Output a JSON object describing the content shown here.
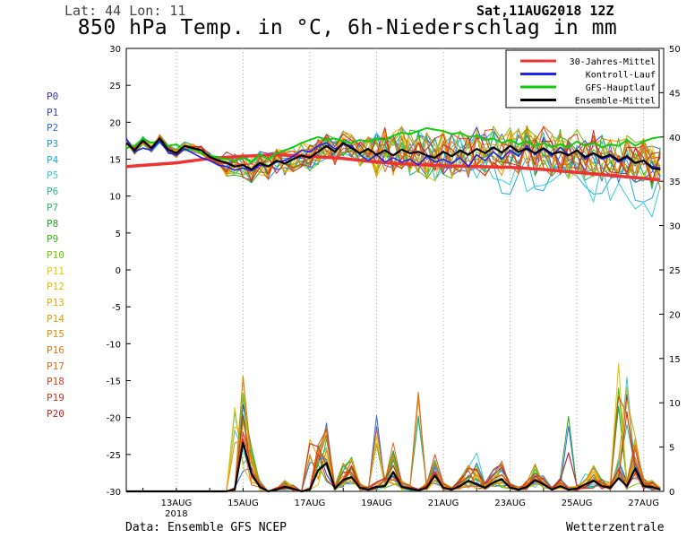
{
  "header": {
    "location": "Lat: 44 Lon: 11",
    "run": "Sat,11AUG2018 12Z",
    "title": "850 hPa Temp. in °C, 6h-Niederschlag in mm"
  },
  "footer": {
    "source": "Data: Ensemble GFS NCEP",
    "brand": "Wetterzentrale"
  },
  "members": [
    {
      "label": "P0",
      "color": "#3333cc"
    },
    {
      "label": "P1",
      "color": "#3344dd"
    },
    {
      "label": "P2",
      "color": "#3366ee"
    },
    {
      "label": "P3",
      "color": "#2299dd"
    },
    {
      "label": "P4",
      "color": "#22aadd"
    },
    {
      "label": "P5",
      "color": "#33ccdd"
    },
    {
      "label": "P6",
      "color": "#22bb88"
    },
    {
      "label": "P7",
      "color": "#22bb66"
    },
    {
      "label": "P8",
      "color": "#22aa22"
    },
    {
      "label": "P9",
      "color": "#33bb11"
    },
    {
      "label": "P10",
      "color": "#66cc00"
    },
    {
      "label": "P11",
      "color": "#ddcc00"
    },
    {
      "label": "P12",
      "color": "#eebb00"
    },
    {
      "label": "P13",
      "color": "#eeaa00"
    },
    {
      "label": "P14",
      "color": "#ee9900"
    },
    {
      "label": "P15",
      "color": "#ee8800"
    },
    {
      "label": "P16",
      "color": "#dd7711"
    },
    {
      "label": "P17",
      "color": "#dd6622"
    },
    {
      "label": "P18",
      "color": "#dd4422"
    },
    {
      "label": "P19",
      "color": "#cc3322"
    },
    {
      "label": "P20",
      "color": "#cc2222"
    }
  ],
  "chart_data": {
    "type": "line",
    "title": "850 hPa Temp. in °C, 6h-Niederschlag in mm",
    "x_ticks": [
      "13AUG\n2018",
      "15AUG",
      "17AUG",
      "19AUG",
      "21AUG",
      "23AUG",
      "25AUG",
      "27AUG"
    ],
    "y_left": {
      "ticks": [
        30,
        25,
        20,
        15,
        10,
        5,
        0,
        -5,
        -10,
        -15,
        -20,
        -25,
        -30
      ],
      "range": [
        -30,
        30
      ]
    },
    "y_right": {
      "ticks": [
        50,
        45,
        40,
        35,
        30,
        25,
        20,
        15,
        10,
        5,
        0
      ],
      "range": [
        0,
        50
      ]
    },
    "legend": [
      {
        "name": "30-Jahres-Mittel",
        "color": "#ee3333"
      },
      {
        "name": "Kontroll-Lauf",
        "color": "#2222ee"
      },
      {
        "name": "GFS-Hauptlauf",
        "color": "#11cc11"
      },
      {
        "name": "Ensemble-Mittel",
        "color": "#000000"
      }
    ],
    "start_day": 11.5,
    "step_days": 0.25,
    "clim_points": [
      [
        11.5,
        14
      ],
      [
        13,
        14.5
      ],
      [
        14,
        15.1
      ],
      [
        15,
        15.4
      ],
      [
        16,
        15.6
      ],
      [
        17,
        15.4
      ],
      [
        18,
        15.1
      ],
      [
        19,
        14.6
      ],
      [
        20,
        14.3
      ],
      [
        21,
        14.1
      ],
      [
        22,
        14.0
      ],
      [
        23,
        13.9
      ],
      [
        24,
        13.6
      ],
      [
        25,
        13.2
      ],
      [
        26,
        12.8
      ],
      [
        27,
        12.4
      ],
      [
        27.5,
        12.2
      ]
    ],
    "mean_temp": [
      17.2,
      16.2,
      17.5,
      16.5,
      17.8,
      16.3,
      15.8,
      16.8,
      16.5,
      16.2,
      15.3,
      14.8,
      14.5,
      14.0,
      14.2,
      13.6,
      14.5,
      14.0,
      14.8,
      14.4,
      15.0,
      15.5,
      15.2,
      16.0,
      16.8,
      16.0,
      17.2,
      16.5,
      15.8,
      16.4,
      15.6,
      16.2,
      15.5,
      16.3,
      15.8,
      16.0,
      15.5,
      15.2,
      16.0,
      15.4,
      16.2,
      15.6,
      16.4,
      15.8,
      16.6,
      15.9,
      16.8,
      16.0,
      16.4,
      15.8,
      16.5,
      15.7,
      16.0,
      15.5,
      16.2,
      15.3,
      15.8,
      15.2,
      15.6,
      14.8,
      15.4,
      14.5,
      14.8,
      13.8,
      13.6
    ],
    "hauptlauf_temp": [
      16.5,
      16.8,
      17.8,
      17.2,
      17.5,
      16.8,
      17.0,
      16.2,
      16.4,
      15.8,
      15.5,
      15.2,
      15.0,
      14.8,
      15.2,
      14.6,
      15.6,
      15.0,
      15.8,
      16.2,
      16.6,
      17.2,
      17.6,
      18.0,
      17.6,
      17.8,
      17.4,
      17.2,
      17.6,
      17.4,
      17.8,
      17.6,
      18.2,
      18.6,
      18.4,
      18.8,
      19.2,
      19.0,
      18.8,
      18.4,
      18.6,
      18.0,
      18.2,
      17.6,
      17.8,
      17.2,
      17.6,
      17.0,
      17.4,
      16.8,
      17.2,
      16.6,
      17.0,
      16.6,
      17.4,
      16.8,
      17.2,
      16.6,
      17.0,
      16.8,
      17.6,
      16.8,
      17.4,
      17.8,
      18.0
    ],
    "kontroll_temp": [
      17.8,
      16.0,
      16.5,
      16.2,
      17.4,
      16.0,
      15.5,
      16.4,
      15.8,
      15.2,
      14.8,
      14.2,
      14.0,
      13.5,
      13.8,
      13.4,
      14.2,
      14.0,
      14.6,
      14.8,
      15.4,
      16.2,
      16.0,
      16.8,
      17.2,
      16.4,
      17.0,
      16.8,
      15.6,
      14.8,
      15.6,
      14.6,
      15.2,
      14.6,
      15.0,
      14.2,
      15.4,
      14.6,
      15.0,
      14.4,
      15.2,
      14.0,
      15.6,
      14.8,
      16.0,
      15.0,
      16.2,
      15.4,
      16.8,
      15.6,
      16.4,
      15.4,
      16.6,
      15.6,
      16.2,
      15.0,
      15.8,
      15.0,
      15.4,
      14.6,
      15.2,
      14.4,
      14.8,
      14.0,
      13.8
    ],
    "mean_precip": [
      0,
      0,
      0,
      0,
      0,
      0,
      0,
      0,
      0,
      0,
      0,
      0,
      0,
      0.2,
      5.5,
      2.0,
      0.5,
      0,
      0.2,
      0.5,
      0.3,
      0,
      0.2,
      2.4,
      3.2,
      0.3,
      1.3,
      1.6,
      0.4,
      0.2,
      0.5,
      0.6,
      2.2,
      0.5,
      0.3,
      0.1,
      0.4,
      1.8,
      0.4,
      0.2,
      0.6,
      1.2,
      0.8,
      0.4,
      1.0,
      1.4,
      0.4,
      0.2,
      0.5,
      1.3,
      0.8,
      0.2,
      0.6,
      0.2,
      0.3,
      0.8,
      1.2,
      0.6,
      0.4,
      1.5,
      0.6,
      2.6,
      0.6,
      0.5,
      0.2
    ],
    "precip_peaks": [
      {
        "day": 14.75,
        "mm": 10.0
      },
      {
        "day": 15.0,
        "mm": 9.0
      },
      {
        "day": 17.0,
        "mm": 6.0
      },
      {
        "day": 18.9,
        "mm": 10.5
      },
      {
        "day": 20.25,
        "mm": 13.0
      },
      {
        "day": 22.0,
        "mm": 4.5
      },
      {
        "day": 24.8,
        "mm": 8.5
      },
      {
        "day": 26.3,
        "mm": 16.5
      },
      {
        "day": 26.6,
        "mm": 13.5
      }
    ]
  }
}
